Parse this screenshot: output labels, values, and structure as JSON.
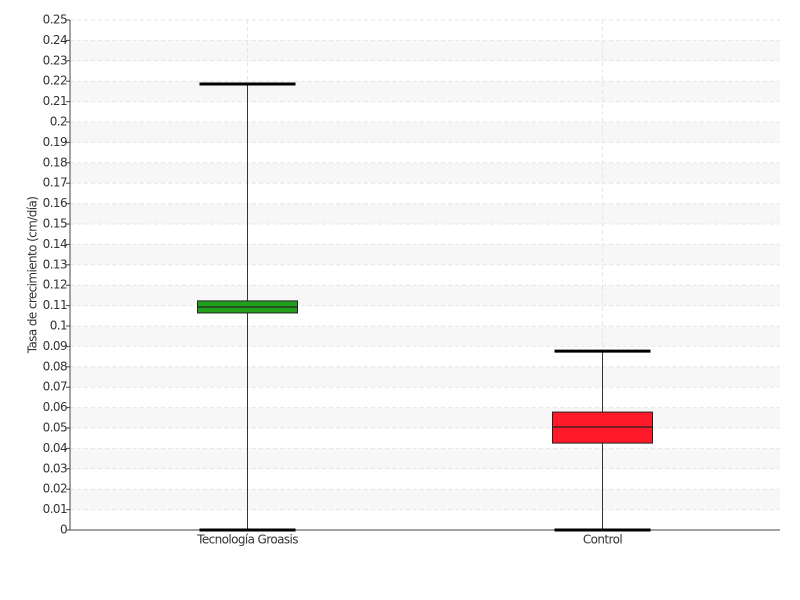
{
  "chart_data": {
    "type": "box",
    "y_label": "Tasa de crecimiento (cm/día)",
    "categories": [
      "Tecnología Groasis",
      "Control"
    ],
    "min": [
      0,
      0
    ],
    "q1": [
      0.1064,
      0.0426
    ],
    "median": [
      0.1093,
      0.0505
    ],
    "q3": [
      0.1123,
      0.0578
    ],
    "max": [
      0.2186,
      0.0877
    ],
    "colors": [
      "#22a01c",
      "#ff1a2a"
    ],
    "ylim": [
      0,
      0.25
    ],
    "yticks": [
      0,
      0.01,
      0.02,
      0.03,
      0.04,
      0.05,
      0.06,
      0.07,
      0.08,
      0.09,
      0.1,
      0.11,
      0.12,
      0.13,
      0.14,
      0.15,
      0.16,
      0.17,
      0.18,
      0.19,
      0.2,
      0.21,
      0.22,
      0.23,
      0.24,
      0.25
    ],
    "grid": true
  }
}
